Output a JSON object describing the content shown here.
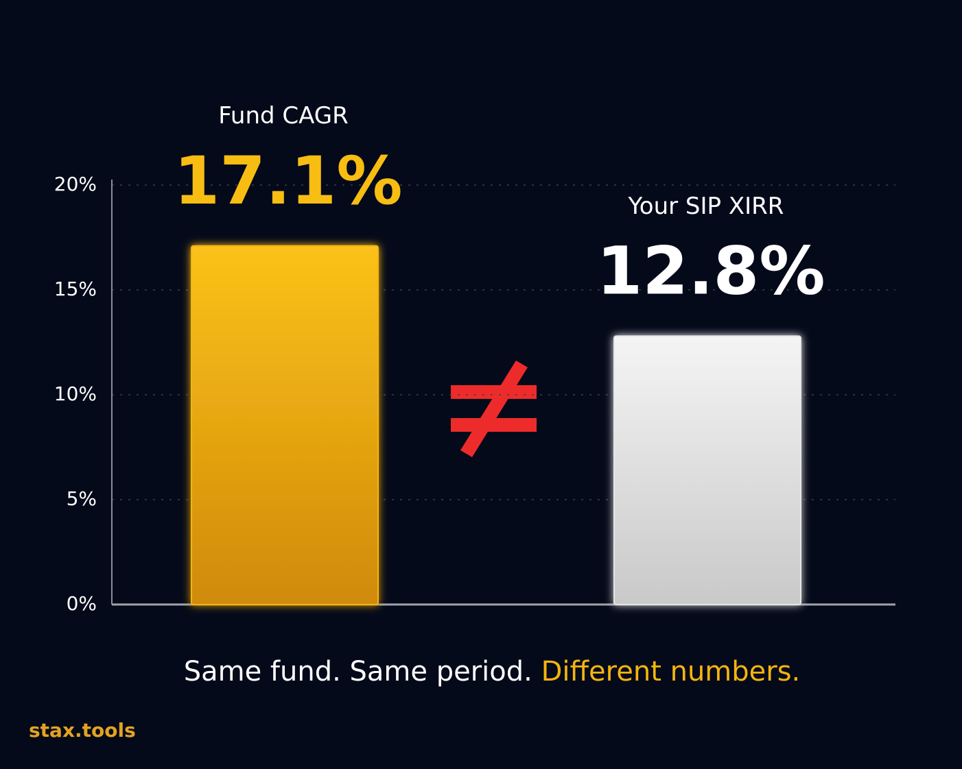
{
  "chart_data": {
    "type": "bar",
    "categories": [
      "Fund CAGR",
      "Your SIP XIRR"
    ],
    "series": [
      {
        "values": [
          17.1,
          12.8
        ],
        "value_labels": [
          "17.1%",
          "12.8%"
        ],
        "colors": [
          "#f5b50f",
          "#e6e6e6"
        ],
        "label_colors": [
          "#f8bd12",
          "#ffffff"
        ]
      }
    ],
    "ylim": [
      0,
      20
    ],
    "yticks": [
      {
        "value": 0,
        "label": "0%"
      },
      {
        "value": 5,
        "label": "5%"
      },
      {
        "value": 10,
        "label": "10%"
      },
      {
        "value": 15,
        "label": "15%"
      },
      {
        "value": 20,
        "label": "20%"
      }
    ],
    "grid": true,
    "caption": [
      "Same fund. Same period.",
      "Different numbers."
    ],
    "caption_colors": [
      "#ffffff",
      "#f5b50f"
    ],
    "brand": "stax.tools"
  }
}
